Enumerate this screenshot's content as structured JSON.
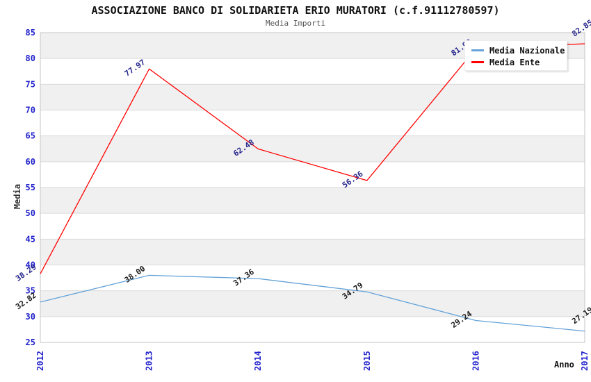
{
  "header": {
    "title": "ASSOCIAZIONE BANCO DI SOLIDARIETA ERIO MURATORI (c.f.91112780597)",
    "subtitle": "Media Importi"
  },
  "axes": {
    "y_title": "Media",
    "x_title": "Anno"
  },
  "colors": {
    "axis_tick_label": "#2222cc",
    "grid_band": "#f0f0f0",
    "grid_line": "#d9d9d9",
    "plot_border": "#c6c6c6",
    "nazionale_line": "#64a2d8",
    "ente_line": "#ff0000",
    "nazionale_value_label": "#1a1a1a",
    "ente_value_label": "#26268c"
  },
  "chart_data": {
    "type": "line",
    "title": "ASSOCIAZIONE BANCO DI SOLIDARIETA ERIO MURATORI (c.f.91112780597)",
    "subtitle": "Media Importi",
    "xlabel": "Anno",
    "ylabel": "Media",
    "x": [
      "2012",
      "2013",
      "2014",
      "2015",
      "2016",
      "2017"
    ],
    "series": [
      {
        "name": "Media Nazionale",
        "color": "#64a2d8",
        "label_color": "#1a1a1a",
        "values": [
          32.82,
          38.0,
          37.36,
          34.79,
          29.24,
          27.19
        ]
      },
      {
        "name": "Media Ente",
        "color": "#ff0000",
        "label_color": "#26268c",
        "values": [
          38.29,
          77.97,
          62.48,
          56.36,
          81.92,
          82.85
        ]
      }
    ],
    "ylim": [
      25,
      85
    ],
    "ytick_step": 5,
    "grid": "horizontal-bands",
    "legend_position": "top-right"
  }
}
